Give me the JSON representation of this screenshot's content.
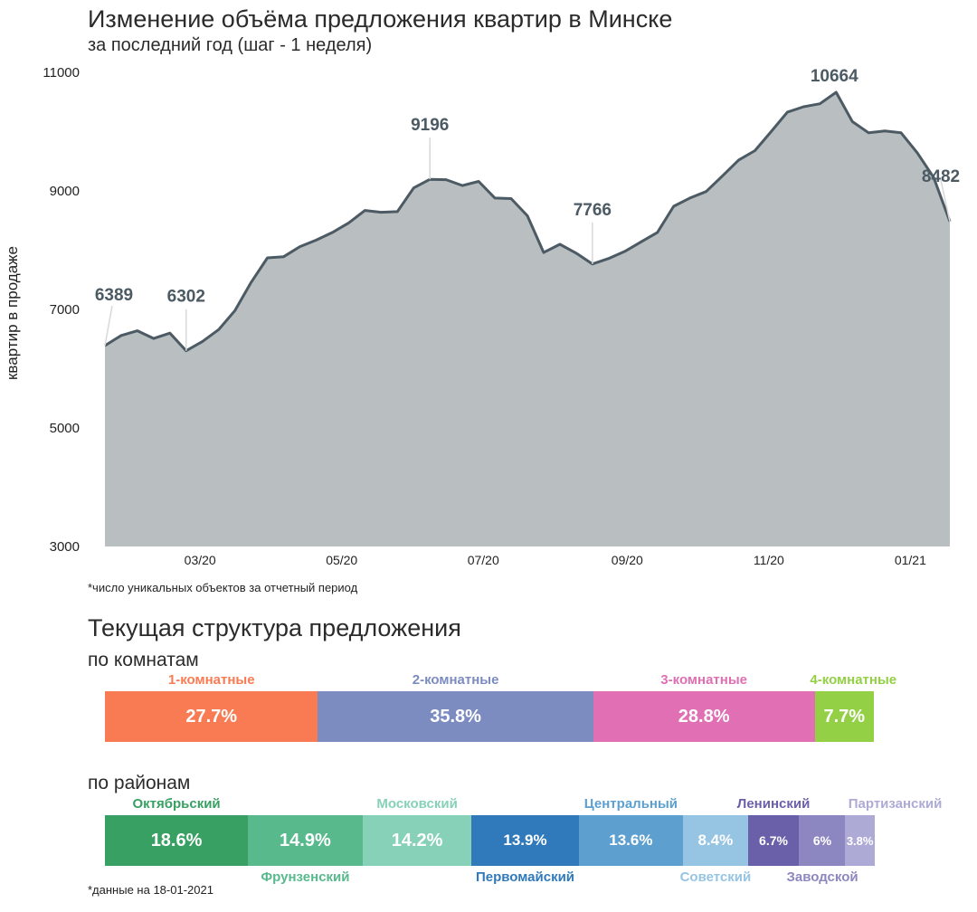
{
  "header": {
    "title": "Изменение объёма предложения квартир в Минске",
    "subtitle": "за последний год (шаг - 1 неделя)"
  },
  "chart_data": {
    "type": "area",
    "ylabel": "квартир в продаже",
    "ylim": [
      3000,
      11000
    ],
    "y_ticks": [
      3000,
      5000,
      7000,
      9000,
      11000
    ],
    "x_ticks": [
      "03/20",
      "05/20",
      "07/20",
      "09/20",
      "11/20",
      "01/21"
    ],
    "x_start": "2020-01-20",
    "x_end": "2021-01-18",
    "x_tick_dates": [
      "2020-03-01",
      "2020-05-01",
      "2020-07-01",
      "2020-09-01",
      "2020-11-01",
      "2021-01-01"
    ],
    "values": [
      6389,
      6560,
      6640,
      6510,
      6600,
      6302,
      6460,
      6660,
      6980,
      7460,
      7870,
      7890,
      8060,
      8170,
      8300,
      8460,
      8670,
      8640,
      8650,
      9050,
      9196,
      9190,
      9090,
      9160,
      8880,
      8870,
      8580,
      7960,
      8100,
      7950,
      7766,
      7860,
      7980,
      8140,
      8300,
      8740,
      8880,
      8990,
      9250,
      9520,
      9680,
      10000,
      10330,
      10420,
      10470,
      10664,
      10170,
      9980,
      10010,
      9980,
      9640,
      9230,
      8482
    ],
    "annotations": [
      {
        "index": 0,
        "value": 6389,
        "label": "6389"
      },
      {
        "index": 5,
        "value": 6302,
        "label": "6302"
      },
      {
        "index": 20,
        "value": 9196,
        "label": "9196"
      },
      {
        "index": 30,
        "value": 7766,
        "label": "7766"
      },
      {
        "index": 45,
        "value": 10664,
        "label": "10664"
      },
      {
        "index": 52,
        "value": 8482,
        "label": "8482"
      }
    ],
    "colors": {
      "fill": "#b9bec1",
      "line": "#4c5a64",
      "label": "#4c5a64"
    },
    "grid": false
  },
  "footnote_chart": "*число уникальных объектов за отчетный период",
  "structure": {
    "title": "Текущая структура предложения",
    "rooms": {
      "title": "по комнатам",
      "segments": [
        {
          "name": "1-комнатные",
          "percent": 27.7,
          "label": "27.7%",
          "color": "#f97b53"
        },
        {
          "name": "2-комнатные",
          "percent": 35.8,
          "label": "35.8%",
          "color": "#7c8cc0"
        },
        {
          "name": "3-комнатные",
          "percent": 28.8,
          "label": "28.8%",
          "color": "#e06fb4"
        },
        {
          "name": "4-комнатные",
          "percent": 7.7,
          "label": "7.7%",
          "color": "#94d046"
        }
      ]
    },
    "districts": {
      "title": "по районам",
      "segments": [
        {
          "name": "Октябрьский",
          "percent": 18.6,
          "label": "18.6%",
          "color": "#37a062",
          "name_pos": "top"
        },
        {
          "name": "Фрунзенский",
          "percent": 14.9,
          "label": "14.9%",
          "color": "#57b98c",
          "name_pos": "bottom"
        },
        {
          "name": "Московский",
          "percent": 14.2,
          "label": "14.2%",
          "color": "#86d1b7",
          "name_pos": "top"
        },
        {
          "name": "Первомайский",
          "percent": 13.9,
          "label": "13.9%",
          "color": "#3079ba",
          "name_pos": "bottom"
        },
        {
          "name": "Центральный",
          "percent": 13.6,
          "label": "13.6%",
          "color": "#5da0d0",
          "name_pos": "top"
        },
        {
          "name": "Советский",
          "percent": 8.4,
          "label": "8.4%",
          "color": "#96c4e3",
          "name_pos": "bottom"
        },
        {
          "name": "Ленинский",
          "percent": 6.7,
          "label": "6.7%",
          "color": "#6a60a9",
          "name_pos": "top"
        },
        {
          "name": "Заводской",
          "percent": 6,
          "label": "6%",
          "color": "#8c86c1",
          "name_pos": "bottom"
        },
        {
          "name": "Партизанский",
          "percent": 3.8,
          "label": "3.8%",
          "color": "#aeaad6",
          "name_pos": "top"
        }
      ]
    }
  },
  "footnote_data": "*данные на 18-01-2021"
}
